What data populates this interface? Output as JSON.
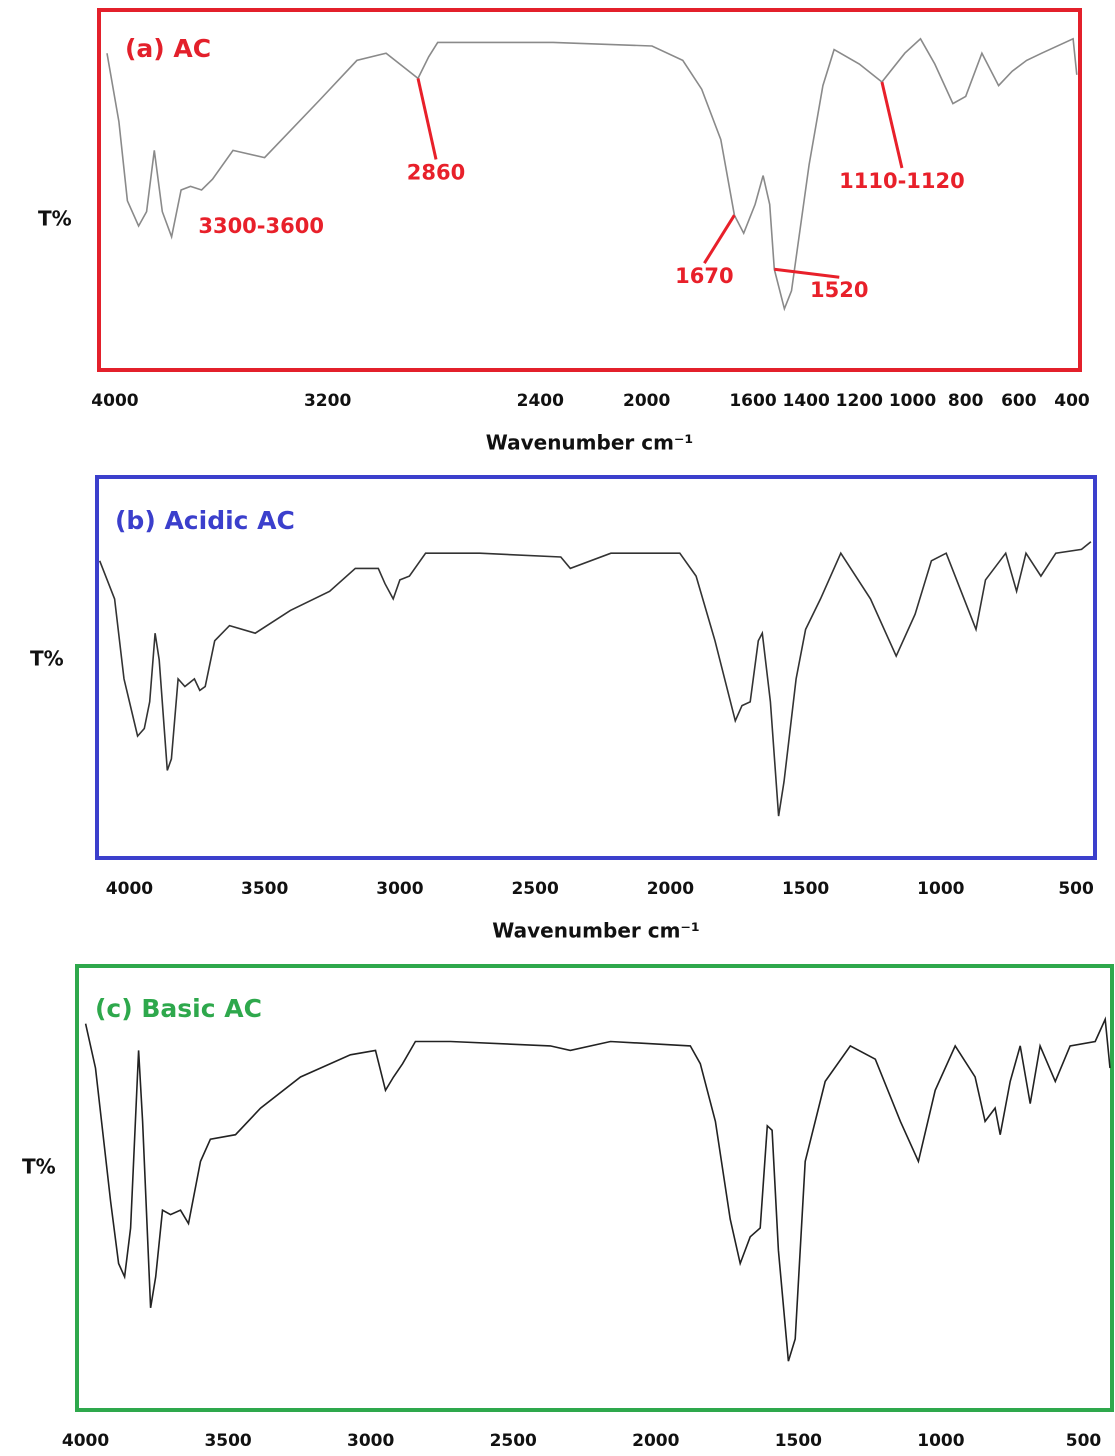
{
  "chart_data": [
    {
      "type": "line",
      "title": "(a) AC",
      "y_label": "T%",
      "x_label": "Wavenumber cm⁻¹",
      "frame_color": "#e3202b",
      "xlim": [
        4060,
        370
      ],
      "ylim": [
        0,
        100
      ],
      "xticks": [
        4000,
        3200,
        2400,
        2000,
        1600,
        1400,
        1200,
        1000,
        800,
        600,
        400
      ],
      "x": [
        4030,
        3985,
        3953,
        3911,
        3881,
        3852,
        3822,
        3787,
        3751,
        3716,
        3674,
        3633,
        3556,
        3437,
        3230,
        3090,
        2980,
        2860,
        2820,
        2786,
        2352,
        1980,
        1864,
        1793,
        1721,
        1670,
        1635,
        1592,
        1562,
        1537,
        1520,
        1482,
        1455,
        1389,
        1337,
        1295,
        1200,
        1115,
        1029,
        970,
        916,
        848,
        800,
        739,
        676,
        625,
        571,
        514,
        396,
        382
      ],
      "series": [
        {
          "color": "#8a8a8a",
          "values": [
            88,
            69,
            47,
            40,
            44,
            61,
            44,
            37,
            50,
            51,
            50,
            53,
            61,
            59,
            75,
            86,
            88,
            81,
            87,
            91,
            91,
            90,
            86,
            78,
            64,
            43,
            38,
            46,
            54,
            46,
            28,
            17,
            22,
            57,
            79,
            89,
            85,
            80,
            88,
            92,
            85,
            74,
            76,
            88,
            79,
            83,
            86,
            88,
            92,
            82
          ]
        }
      ],
      "annotations": [
        "3300-3600",
        "2860",
        "1670",
        "1520",
        "1110-1120"
      ]
    },
    {
      "type": "line",
      "title": "(b) Acidic AC",
      "y_label": "T%",
      "x_label": "Wavenumber cm⁻¹",
      "frame_color": "#3b3fcc",
      "xlim": [
        4120,
        430
      ],
      "ylim": [
        0,
        100
      ],
      "xticks": [
        4000,
        3500,
        3000,
        2500,
        2000,
        1500,
        1000,
        500
      ],
      "x": [
        4110,
        4055,
        4020,
        3970,
        3945,
        3925,
        3905,
        3890,
        3860,
        3845,
        3820,
        3795,
        3760,
        3740,
        3720,
        3685,
        3630,
        3535,
        3405,
        3260,
        3165,
        3080,
        3055,
        3025,
        3000,
        2965,
        2905,
        2705,
        2405,
        2370,
        2220,
        1965,
        1905,
        1835,
        1760,
        1735,
        1705,
        1675,
        1660,
        1630,
        1600,
        1580,
        1535,
        1500,
        1445,
        1370,
        1260,
        1165,
        1095,
        1035,
        980,
        925,
        870,
        835,
        760,
        720,
        685,
        630,
        575,
        480,
        445
      ],
      "series": [
        {
          "color": "#333333",
          "values": [
            78,
            68,
            47,
            32,
            34,
            41,
            59,
            52,
            23,
            26,
            47,
            45,
            47,
            44,
            45,
            57,
            61,
            59,
            65,
            70,
            76,
            76,
            72,
            68,
            73,
            74,
            80,
            80,
            79,
            76,
            80,
            80,
            74,
            57,
            36,
            40,
            41,
            57,
            59,
            41,
            11,
            20,
            47,
            60,
            68,
            80,
            68,
            53,
            64,
            78,
            80,
            70,
            60,
            73,
            80,
            70,
            80,
            74,
            80,
            81,
            83
          ]
        }
      ]
    },
    {
      "type": "line",
      "title": "(c) Basic AC",
      "y_label": "T%",
      "frame_color": "#2ea84c",
      "xlim": [
        4030,
        400
      ],
      "ylim": [
        0,
        100
      ],
      "xticks": [
        4000,
        3500,
        3000,
        2500,
        2000,
        1500,
        1000,
        500
      ],
      "x": [
        4000,
        3965,
        3912,
        3884,
        3863,
        3842,
        3814,
        3800,
        3772,
        3754,
        3730,
        3702,
        3667,
        3639,
        3597,
        3562,
        3474,
        3386,
        3246,
        3071,
        2983,
        2948,
        2920,
        2888,
        2843,
        2720,
        2370,
        2300,
        2159,
        1879,
        1844,
        1791,
        1739,
        1704,
        1669,
        1634,
        1609,
        1592,
        1570,
        1535,
        1511,
        1476,
        1406,
        1318,
        1230,
        1142,
        1079,
        1020,
        950,
        880,
        845,
        810,
        792,
        757,
        722,
        687,
        652,
        599,
        547,
        459,
        424,
        407
      ],
      "series": [
        {
          "color": "#222222",
          "values": [
            87,
            77,
            47,
            33,
            30,
            41,
            81,
            65,
            23,
            30,
            45,
            44,
            45,
            42,
            56,
            61,
            62,
            68,
            75,
            80,
            81,
            72,
            75,
            78,
            83,
            83,
            82,
            81,
            83,
            82,
            78,
            65,
            43,
            33,
            39,
            41,
            64,
            63,
            36,
            11,
            16,
            56,
            74,
            82,
            79,
            65,
            56,
            72,
            82,
            75,
            65,
            68,
            62,
            74,
            82,
            69,
            82,
            74,
            82,
            83,
            88,
            77
          ]
        }
      ]
    }
  ]
}
